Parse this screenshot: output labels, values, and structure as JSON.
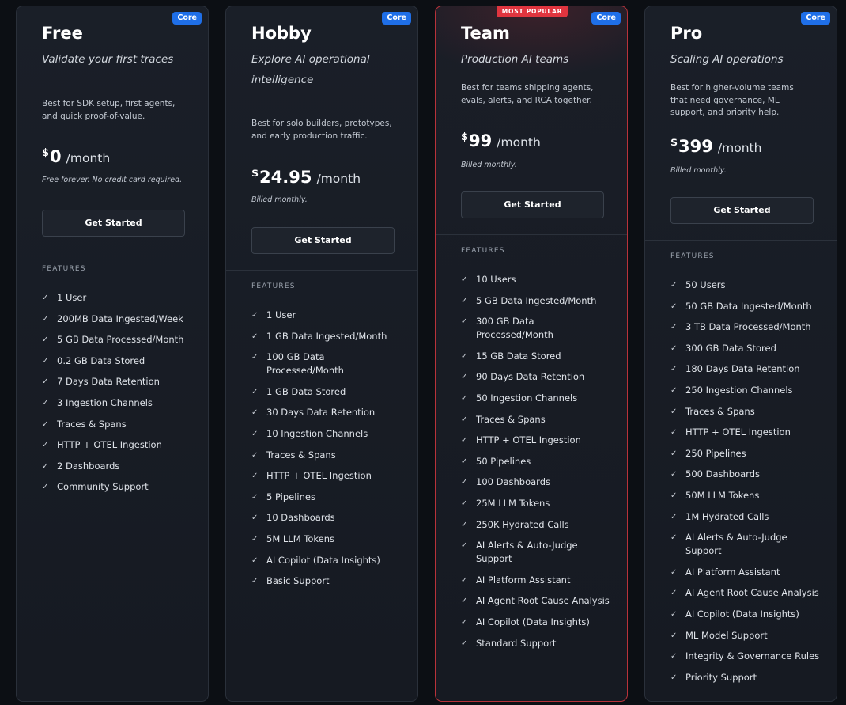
{
  "plans": [
    {
      "name": "Free",
      "tagline": "Validate your first traces",
      "badge": "Core",
      "description": "Best for SDK setup, first agents, and quick proof-of-value.",
      "currency": "$",
      "price": "0",
      "period": "/month",
      "billing": "Free forever. No credit card required.",
      "cta": "Get Started",
      "features_heading": "FEATURES",
      "features": [
        "1 User",
        "200MB Data Ingested/Week",
        "5 GB Data Processed/Month",
        "0.2 GB Data Stored",
        "7 Days Data Retention",
        "3 Ingestion Channels",
        "Traces & Spans",
        "HTTP + OTEL Ingestion",
        "2 Dashboards",
        "Community Support"
      ]
    },
    {
      "name": "Hobby",
      "tagline": "Explore AI operational intelligence",
      "badge": "Core",
      "description": "Best for solo builders, prototypes, and early production traffic.",
      "currency": "$",
      "price": "24.95",
      "period": "/month",
      "billing": "Billed monthly.",
      "cta": "Get Started",
      "features_heading": "FEATURES",
      "features": [
        "1 User",
        "1 GB Data Ingested/Month",
        "100 GB Data Processed/Month",
        "1 GB Data Stored",
        "30 Days Data Retention",
        "10 Ingestion Channels",
        "Traces & Spans",
        "HTTP + OTEL Ingestion",
        "5 Pipelines",
        "10 Dashboards",
        "5M LLM Tokens",
        "AI Copilot (Data Insights)",
        "Basic Support"
      ]
    },
    {
      "name": "Team",
      "tagline": "Production AI teams",
      "badge": "Core",
      "popular_label": "MOST POPULAR",
      "description": "Best for teams shipping agents, evals, alerts, and RCA together.",
      "currency": "$",
      "price": "99",
      "period": "/month",
      "billing": "Billed monthly.",
      "cta": "Get Started",
      "features_heading": "FEATURES",
      "features": [
        "10 Users",
        "5 GB Data Ingested/Month",
        "300 GB Data Processed/Month",
        "15 GB Data Stored",
        "90 Days Data Retention",
        "50 Ingestion Channels",
        "Traces & Spans",
        "HTTP + OTEL Ingestion",
        "50 Pipelines",
        "100 Dashboards",
        "25M LLM Tokens",
        "250K Hydrated Calls",
        "AI Alerts & Auto-Judge Support",
        "AI Platform Assistant",
        "AI Agent Root Cause Analysis",
        "AI Copilot (Data Insights)",
        "Standard Support"
      ]
    },
    {
      "name": "Pro",
      "tagline": "Scaling AI operations",
      "badge": "Core",
      "description": "Best for higher-volume teams that need governance, ML support, and priority help.",
      "currency": "$",
      "price": "399",
      "period": "/month",
      "billing": "Billed monthly.",
      "cta": "Get Started",
      "features_heading": "FEATURES",
      "features": [
        "50 Users",
        "50 GB Data Ingested/Month",
        "3 TB Data Processed/Month",
        "300 GB Data Stored",
        "180 Days Data Retention",
        "250 Ingestion Channels",
        "Traces & Spans",
        "HTTP + OTEL Ingestion",
        "250 Pipelines",
        "500 Dashboards",
        "50M LLM Tokens",
        "1M Hydrated Calls",
        "AI Alerts & Auto-Judge Support",
        "AI Platform Assistant",
        "AI Agent Root Cause Analysis",
        "AI Copilot (Data Insights)",
        "ML Model Support",
        "Integrity & Governance Rules",
        "Priority Support"
      ]
    }
  ],
  "colors": {
    "background": "#0c0f14",
    "card": "#181c24",
    "core_badge": "#1f6fe8",
    "popular_accent": "#e0353f",
    "popular_border": "#b8323a"
  },
  "icons": {
    "feature_check": "check-icon"
  }
}
